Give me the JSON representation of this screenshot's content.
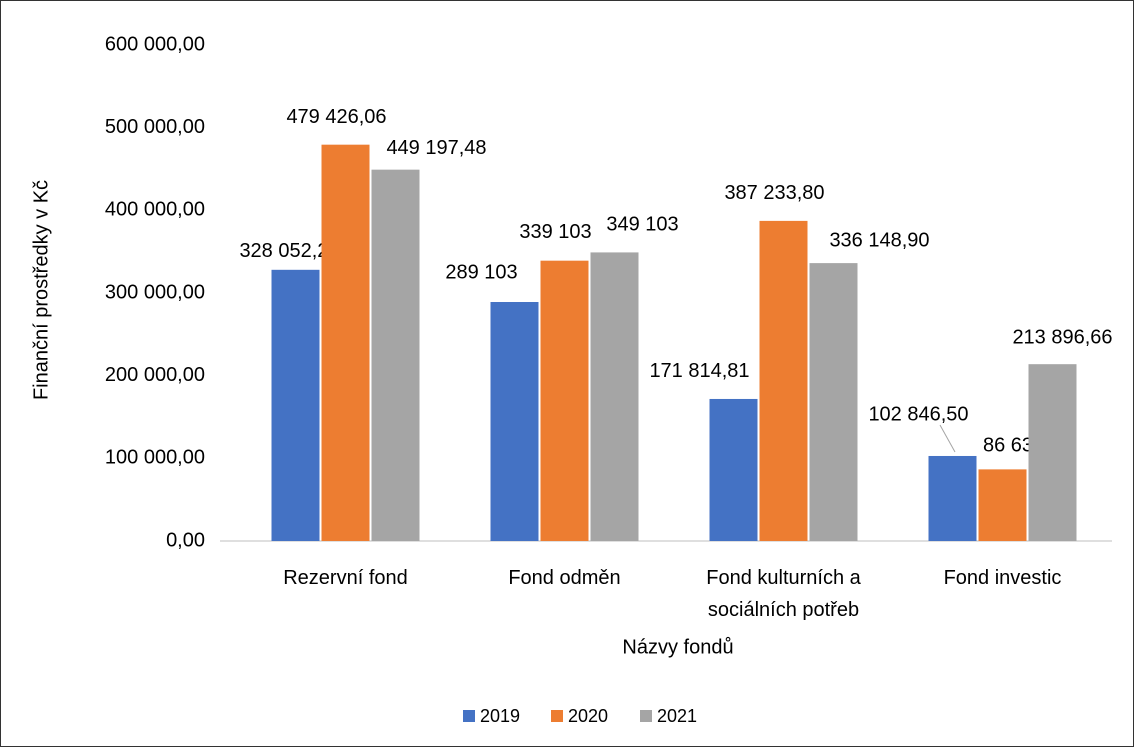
{
  "chart_data": {
    "type": "bar",
    "y_axis_label": "Finanční prostředky v Kč",
    "x_axis_label": "Názvy fondů",
    "categories": [
      "Rezervní fond",
      "Fond odměn",
      "Fond kulturních a sociálních potřeb",
      "Fond investic"
    ],
    "series": [
      {
        "name": "2019",
        "color": "#4472c4",
        "values": [
          328052.24,
          289103,
          171814.81,
          102846.5
        ],
        "value_labels": [
          "328 052,24",
          "289 103",
          "171 814,81",
          "102 846,50"
        ]
      },
      {
        "name": "2020",
        "color": "#ed7d31",
        "values": [
          479426.06,
          339103,
          387233.8,
          86637.39
        ],
        "value_labels": [
          "479 426,06",
          "339 103",
          "387 233,80",
          "86 637,39"
        ]
      },
      {
        "name": "2021",
        "color": "#a5a5a5",
        "values": [
          449197.48,
          349103,
          336148.9,
          213896.66
        ],
        "value_labels": [
          "449 197,48",
          "349 103",
          "336 148,90",
          "213 896,66"
        ]
      }
    ],
    "ylim": [
      0,
      600000
    ],
    "yticks": [
      {
        "value": 0,
        "label": "0,00"
      },
      {
        "value": 100000,
        "label": "100 000,00"
      },
      {
        "value": 200000,
        "label": "200 000,00"
      },
      {
        "value": 300000,
        "label": "300 000,00"
      },
      {
        "value": 400000,
        "label": "400 000,00"
      },
      {
        "value": 500000,
        "label": "500 000,00"
      },
      {
        "value": 600000,
        "label": "600 000,00"
      }
    ],
    "grid": false,
    "legend": "bottom"
  }
}
